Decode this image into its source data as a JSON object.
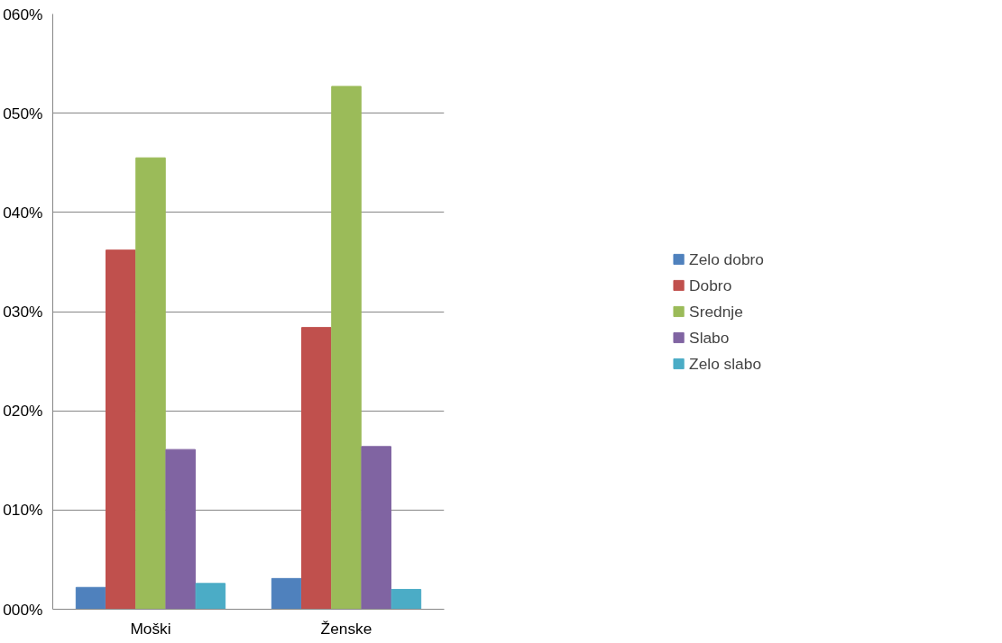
{
  "chart_data": {
    "type": "bar",
    "categories": [
      "Moški",
      "Ženske"
    ],
    "series": [
      {
        "name": "Zelo dobro",
        "color": "#4f81bd",
        "values": [
          2.2,
          3.1
        ]
      },
      {
        "name": "Dobro",
        "color": "#c0504d",
        "values": [
          36.2,
          28.4
        ]
      },
      {
        "name": "Srednje",
        "color": "#9bbb59",
        "values": [
          45.5,
          52.7
        ]
      },
      {
        "name": "Slabo",
        "color": "#8064a2",
        "values": [
          16.1,
          16.4
        ]
      },
      {
        "name": "Zelo slabo",
        "color": "#4bacc6",
        "values": [
          2.6,
          2.0
        ]
      }
    ],
    "ylim": [
      0,
      60
    ],
    "yticks": [
      {
        "value": 0,
        "label": "000%"
      },
      {
        "value": 10,
        "label": "010%"
      },
      {
        "value": 20,
        "label": "020%"
      },
      {
        "value": 30,
        "label": "030%"
      },
      {
        "value": 40,
        "label": "040%"
      },
      {
        "value": 50,
        "label": "050%"
      },
      {
        "value": 60,
        "label": "060%"
      }
    ],
    "grid": "y",
    "legend": "right"
  }
}
